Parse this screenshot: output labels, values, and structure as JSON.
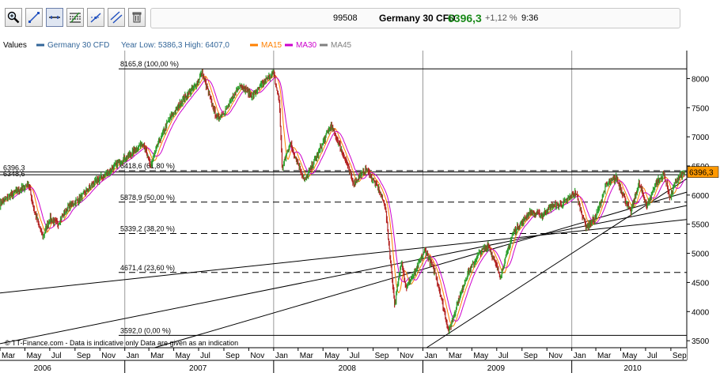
{
  "toolbar": {
    "buttons": [
      {
        "name": "zoom-icon",
        "active": false
      },
      {
        "name": "line-draw-icon",
        "active": false
      },
      {
        "name": "horizontal-line-icon",
        "active": true
      },
      {
        "name": "fibonacci-icon",
        "active": false
      },
      {
        "name": "trend-line-icon",
        "active": false
      },
      {
        "name": "parallel-lines-icon",
        "active": false
      },
      {
        "name": "trash-icon",
        "active": false
      }
    ]
  },
  "quote": {
    "code": "99508",
    "name": "Germany 30 CFD",
    "price": "6396,3",
    "change": "+1,12 %",
    "time": "9:36"
  },
  "colors": {
    "price_up": "#2ca02c",
    "price_down": "#b22222",
    "ma15": "#ff8000",
    "ma30": "#cc00cc",
    "ma45": "#808080",
    "price_tag": "#ff9900",
    "quote_price": "#1a8a1a"
  },
  "chart_data": {
    "type": "line",
    "legend": {
      "values_label": "Values",
      "series_label": "Germany 30 CFD",
      "range_label": "Year Low: 5386,3 High: 6407,0",
      "ma15": "MA15",
      "ma30": "MA30",
      "ma45": "MA45"
    },
    "x_start": "2006-03-01",
    "x_end": "2010-10-10",
    "y_range": [
      3380,
      8480
    ],
    "y_ticks": [
      3500,
      4000,
      4500,
      5000,
      5500,
      6000,
      6500,
      7000,
      7500,
      8000
    ],
    "x_month_ticks": [
      "Mar",
      "May",
      "Jul",
      "Sep",
      "Nov",
      "Jan",
      "Mar",
      "May",
      "Jul",
      "Sep",
      "Nov",
      "Jan",
      "Mar",
      "May",
      "Jul",
      "Sep",
      "Nov",
      "Jan",
      "Mar",
      "May",
      "Jul",
      "Sep",
      "Nov",
      "Jan",
      "Mar",
      "May",
      "Jul",
      "Sep"
    ],
    "x_month_dates": [
      "2006-03-01",
      "2006-05-01",
      "2006-07-01",
      "2006-09-01",
      "2006-11-01",
      "2007-01-01",
      "2007-03-01",
      "2007-05-01",
      "2007-07-01",
      "2007-09-01",
      "2007-11-01",
      "2008-01-01",
      "2008-03-01",
      "2008-05-01",
      "2008-07-01",
      "2008-09-01",
      "2008-11-01",
      "2009-01-01",
      "2009-03-01",
      "2009-05-01",
      "2009-07-01",
      "2009-09-01",
      "2009-11-01",
      "2010-01-01",
      "2010-03-01",
      "2010-05-01",
      "2010-07-01",
      "2010-09-01"
    ],
    "x_year_labels": [
      {
        "label": "2006",
        "date": "2006-06-15"
      },
      {
        "label": "2007",
        "date": "2007-07-01"
      },
      {
        "label": "2008",
        "date": "2008-07-01"
      },
      {
        "label": "2009",
        "date": "2009-07-01"
      },
      {
        "label": "2010",
        "date": "2010-06-01"
      }
    ],
    "x_year_dividers": [
      "2007-01-01",
      "2008-01-01",
      "2009-01-01",
      "2010-01-01"
    ],
    "series": [
      {
        "name": "Germany 30 CFD",
        "points": [
          [
            "2006-03-01",
            5850
          ],
          [
            "2006-04-01",
            6020
          ],
          [
            "2006-04-25",
            6120
          ],
          [
            "2006-05-10",
            6200
          ],
          [
            "2006-05-25",
            5700
          ],
          [
            "2006-06-14",
            5280
          ],
          [
            "2006-07-01",
            5600
          ],
          [
            "2006-07-20",
            5500
          ],
          [
            "2006-08-15",
            5800
          ],
          [
            "2006-09-15",
            5950
          ],
          [
            "2006-10-15",
            6200
          ],
          [
            "2006-11-15",
            6350
          ],
          [
            "2006-12-15",
            6550
          ],
          [
            "2007-01-15",
            6700
          ],
          [
            "2007-02-15",
            6900
          ],
          [
            "2007-03-05",
            6500
          ],
          [
            "2007-03-25",
            6900
          ],
          [
            "2007-04-20",
            7300
          ],
          [
            "2007-05-25",
            7650
          ],
          [
            "2007-06-20",
            7850
          ],
          [
            "2007-07-10",
            8100
          ],
          [
            "2007-08-01",
            7600
          ],
          [
            "2007-08-16",
            7300
          ],
          [
            "2007-09-10",
            7500
          ],
          [
            "2007-10-10",
            7900
          ],
          [
            "2007-11-10",
            7700
          ],
          [
            "2007-12-10",
            7950
          ],
          [
            "2007-12-31",
            8100
          ],
          [
            "2008-01-15",
            7600
          ],
          [
            "2008-01-22",
            6450
          ],
          [
            "2008-02-10",
            6900
          ],
          [
            "2008-03-17",
            6250
          ],
          [
            "2008-04-15",
            6650
          ],
          [
            "2008-05-20",
            7200
          ],
          [
            "2008-06-20",
            6700
          ],
          [
            "2008-07-15",
            6200
          ],
          [
            "2008-08-15",
            6450
          ],
          [
            "2008-09-15",
            6100
          ],
          [
            "2008-10-01",
            5800
          ],
          [
            "2008-10-24",
            4100
          ],
          [
            "2008-11-10",
            4900
          ],
          [
            "2008-11-20",
            4400
          ],
          [
            "2008-12-15",
            4700
          ],
          [
            "2009-01-06",
            5050
          ],
          [
            "2009-02-01",
            4650
          ],
          [
            "2009-03-06",
            3650
          ],
          [
            "2009-03-25",
            4100
          ],
          [
            "2009-04-20",
            4650
          ],
          [
            "2009-05-20",
            5000
          ],
          [
            "2009-06-10",
            5150
          ],
          [
            "2009-07-10",
            4600
          ],
          [
            "2009-08-10",
            5350
          ],
          [
            "2009-09-20",
            5700
          ],
          [
            "2009-10-20",
            5650
          ],
          [
            "2009-11-10",
            5800
          ],
          [
            "2009-12-10",
            5850
          ],
          [
            "2010-01-10",
            6050
          ],
          [
            "2010-02-05",
            5450
          ],
          [
            "2010-02-28",
            5600
          ],
          [
            "2010-03-25",
            6150
          ],
          [
            "2010-04-20",
            6300
          ],
          [
            "2010-05-25",
            5700
          ],
          [
            "2010-06-15",
            6200
          ],
          [
            "2010-07-05",
            5800
          ],
          [
            "2010-07-25",
            6200
          ],
          [
            "2010-08-15",
            6350
          ],
          [
            "2010-08-30",
            5950
          ],
          [
            "2010-09-15",
            6250
          ],
          [
            "2010-10-05",
            6396
          ]
        ]
      }
    ],
    "fib_levels": [
      {
        "value": 8165.8,
        "label": "8165,8 (100,00 %)",
        "style": "solid"
      },
      {
        "value": 6418.6,
        "label": "6418,6 (61,80 %)",
        "style": "dashed"
      },
      {
        "value": 5878.9,
        "label": "5878,9 (50,00 %)",
        "style": "dashed"
      },
      {
        "value": 5339.2,
        "label": "5339,2 (38,20 %)",
        "style": "dashed"
      },
      {
        "value": 4671.4,
        "label": "4671,4 (23,60 %)",
        "style": "dashed"
      },
      {
        "value": 3592.0,
        "label": "3592,0 (0,00 %)",
        "style": "solid"
      }
    ],
    "price_lines": [
      {
        "value": 6396.3,
        "left_label": "6396,3"
      },
      {
        "value": 6348.6,
        "left_label": "6348,6"
      }
    ],
    "current_price_tag": "6396,3",
    "trend_lines": [
      {
        "from": [
          "2006-03-01",
          4320
        ],
        "to": [
          "2010-10-10",
          5580
        ]
      },
      {
        "from": [
          "2006-03-01",
          3450
        ],
        "to": [
          "2010-10-10",
          5820
        ]
      },
      {
        "from": [
          "2007-03-15",
          3380
        ],
        "to": [
          "2010-10-10",
          6050
        ]
      },
      {
        "from": [
          "2009-01-10",
          3380
        ],
        "to": [
          "2010-10-10",
          6280
        ]
      }
    ],
    "footer": "© TT-Finance.com - Data is indicative only Data are given as an indication"
  }
}
